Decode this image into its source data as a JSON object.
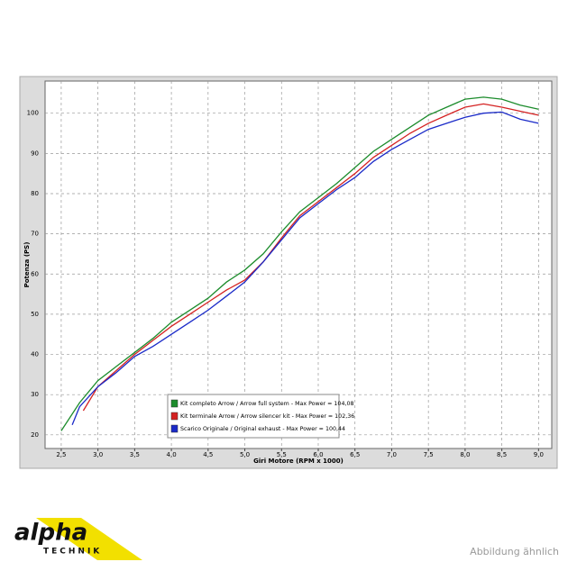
{
  "chart_data": {
    "type": "line",
    "xlabel": "Giri Motore (RPM x 1000)",
    "ylabel": "Potenza (PS)",
    "xlim": [
      2.28,
      9.18
    ],
    "ylim": [
      16.6,
      108
    ],
    "xticks": [
      {
        "value": 2.5,
        "label": "2,5"
      },
      {
        "value": 3.0,
        "label": "3,0"
      },
      {
        "value": 3.5,
        "label": "3,5"
      },
      {
        "value": 4.0,
        "label": "4,0"
      },
      {
        "value": 4.5,
        "label": "4,5"
      },
      {
        "value": 5.0,
        "label": "5,0"
      },
      {
        "value": 5.5,
        "label": "5,5"
      },
      {
        "value": 6.0,
        "label": "6,0"
      },
      {
        "value": 6.5,
        "label": "6,5"
      },
      {
        "value": 7.0,
        "label": "7,0"
      },
      {
        "value": 7.5,
        "label": "7,5"
      },
      {
        "value": 8.0,
        "label": "8,0"
      },
      {
        "value": 8.5,
        "label": "8,5"
      },
      {
        "value": 9.0,
        "label": "9,0"
      }
    ],
    "yticks": [
      20,
      30,
      40,
      50,
      60,
      70,
      80,
      90,
      100
    ],
    "grid": true,
    "legend": "lower center",
    "series": [
      {
        "name": "Kit completo Arrow / Arrow full system - Max Power = 104,08",
        "color": "#1c8c2c",
        "x": [
          2.5,
          2.75,
          3.0,
          3.25,
          3.5,
          3.75,
          4.0,
          4.25,
          4.5,
          4.75,
          5.0,
          5.25,
          5.5,
          5.75,
          6.0,
          6.25,
          6.5,
          6.75,
          7.0,
          7.25,
          7.5,
          7.75,
          8.0,
          8.25,
          8.5,
          8.75,
          9.0
        ],
        "values": [
          21,
          28,
          33.5,
          37,
          40.5,
          44,
          48,
          51,
          54,
          58,
          61,
          65,
          70.5,
          75.5,
          79,
          82.5,
          86.5,
          90.5,
          93.5,
          96.5,
          99.5,
          101.5,
          103.5,
          104,
          103.5,
          102,
          101
        ]
      },
      {
        "name": "Kit terminale Arrow / Arrow silencer kit - Max Power = 102,36",
        "color": "#d42222",
        "x": [
          2.8,
          3.0,
          3.25,
          3.5,
          3.75,
          4.0,
          4.25,
          4.5,
          4.75,
          5.0,
          5.25,
          5.5,
          5.75,
          6.0,
          6.25,
          6.5,
          6.75,
          7.0,
          7.25,
          7.5,
          7.75,
          8.0,
          8.25,
          8.5,
          8.75,
          9.0
        ],
        "values": [
          26,
          32,
          36,
          40,
          43.5,
          47,
          50,
          53,
          56,
          58.5,
          63,
          69,
          74.5,
          78,
          81.5,
          85,
          89,
          92,
          95,
          97.5,
          99.5,
          101.5,
          102.3,
          101.5,
          100.5,
          99.5
        ]
      },
      {
        "name": "Scarico Originale / Original exhaust - Max Power = 100,44",
        "color": "#1a2ac8",
        "x": [
          2.65,
          2.75,
          3.0,
          3.25,
          3.5,
          3.75,
          4.0,
          4.25,
          4.5,
          4.75,
          5.0,
          5.25,
          5.5,
          5.75,
          6.0,
          6.25,
          6.5,
          6.75,
          7.0,
          7.25,
          7.5,
          7.75,
          8.0,
          8.25,
          8.5,
          8.75,
          9.0
        ],
        "values": [
          22.5,
          27,
          32,
          35.5,
          39.5,
          42,
          45,
          48,
          51,
          54.5,
          58,
          63,
          68.5,
          74,
          77.5,
          81,
          84,
          88,
          91,
          93.5,
          96,
          97.5,
          99,
          100,
          100.3,
          98.5,
          97.5
        ]
      }
    ]
  },
  "logo": {
    "text": "alpha",
    "subtext": "TECHNIK"
  },
  "caption": "Abbildung ähnlich"
}
